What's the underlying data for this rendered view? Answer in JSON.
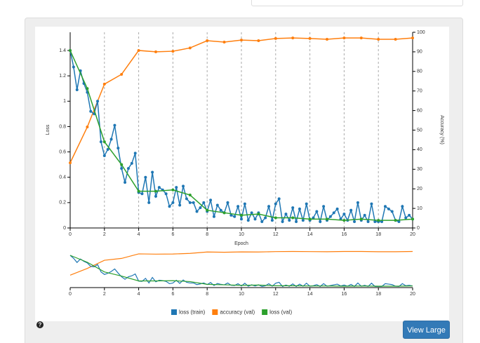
{
  "chart_data": {
    "type": "line",
    "x_label": "Epoch",
    "y_label": "Loss",
    "y2_label": "Accuracy (%)",
    "xlim": [
      0,
      20
    ],
    "xticks": [
      0,
      2,
      4,
      6,
      8,
      10,
      12,
      14,
      16,
      18,
      20
    ],
    "ylim": [
      0,
      1.4
    ],
    "yticks": [
      0,
      0.2,
      0.4,
      0.6,
      0.8,
      1,
      1.2,
      1.4
    ],
    "y2lim": [
      0,
      100
    ],
    "y2ticks": [
      0,
      10,
      20,
      30,
      40,
      50,
      60,
      70,
      80,
      90,
      100
    ],
    "grid": "x",
    "legend": "bottom",
    "series": [
      {
        "name": "loss (train)",
        "color": "#1f77b4",
        "x": [
          0,
          0.2,
          0.4,
          0.6,
          0.8,
          1,
          1.2,
          1.4,
          1.6,
          1.8,
          2,
          2.2,
          2.4,
          2.6,
          2.8,
          3,
          3.2,
          3.4,
          3.6,
          3.8,
          4,
          4.2,
          4.4,
          4.6,
          4.8,
          5,
          5.2,
          5.4,
          5.6,
          5.8,
          6,
          6.2,
          6.4,
          6.6,
          6.8,
          7,
          7.2,
          7.4,
          7.6,
          7.8,
          8,
          8.2,
          8.4,
          8.6,
          8.8,
          9,
          9.2,
          9.4,
          9.6,
          9.8,
          10,
          10.2,
          10.4,
          10.6,
          10.8,
          11,
          11.2,
          11.4,
          11.6,
          11.8,
          12,
          12.2,
          12.4,
          12.6,
          12.8,
          13,
          13.2,
          13.4,
          13.6,
          13.8,
          14,
          14.2,
          14.4,
          14.6,
          14.8,
          15,
          15.2,
          15.4,
          15.6,
          15.8,
          16,
          16.2,
          16.4,
          16.6,
          16.8,
          17,
          17.2,
          17.4,
          17.6,
          17.8,
          18,
          18.2,
          18.4,
          18.6,
          18.8,
          19,
          19.2,
          19.4,
          19.6,
          19.8,
          20
        ],
        "values": [
          1.4,
          1.27,
          1.09,
          1.24,
          1.14,
          1.07,
          0.92,
          0.9,
          1.0,
          0.68,
          0.57,
          0.62,
          0.7,
          0.81,
          0.63,
          0.47,
          0.36,
          0.47,
          0.51,
          0.59,
          0.28,
          0.27,
          0.4,
          0.2,
          0.44,
          0.25,
          0.32,
          0.3,
          0.27,
          0.17,
          0.2,
          0.32,
          0.18,
          0.33,
          0.23,
          0.2,
          0.2,
          0.13,
          0.16,
          0.2,
          0.13,
          0.22,
          0.09,
          0.18,
          0.14,
          0.12,
          0.2,
          0.1,
          0.09,
          0.17,
          0.07,
          0.19,
          0.06,
          0.12,
          0.07,
          0.12,
          0.05,
          0.08,
          0.17,
          0.06,
          0.19,
          0.23,
          0.05,
          0.11,
          0.06,
          0.16,
          0.05,
          0.15,
          0.06,
          0.19,
          0.06,
          0.08,
          0.13,
          0.05,
          0.17,
          0.06,
          0.09,
          0.12,
          0.15,
          0.07,
          0.11,
          0.06,
          0.14,
          0.05,
          0.2,
          0.06,
          0.1,
          0.05,
          0.19,
          0.05,
          0.05,
          0.05,
          0.17,
          0.15,
          0.13,
          0.06,
          0.05,
          0.17,
          0.08,
          0.1,
          0.07
        ]
      },
      {
        "name": "accuracy (val)",
        "color": "#ff7f0e",
        "axis": "y2",
        "x": [
          0,
          1,
          2,
          3,
          4,
          5,
          6,
          7,
          8,
          9,
          10,
          11,
          12,
          13,
          14,
          15,
          16,
          17,
          18,
          19,
          20
        ],
        "values": [
          33.3,
          51.6,
          73.5,
          78.5,
          90.7,
          90,
          90.3,
          92,
          95.7,
          95,
          96,
          95.7,
          96.8,
          97.1,
          96.8,
          96.4,
          97.1,
          97.1,
          96.4,
          96.4,
          97.1
        ]
      },
      {
        "name": "loss (val)",
        "color": "#2ca02c",
        "x": [
          0,
          1,
          2,
          3,
          4,
          5,
          6,
          7,
          8,
          9,
          10,
          11,
          12,
          13,
          14,
          15,
          16,
          17,
          18,
          19,
          20
        ],
        "values": [
          1.4,
          1.1,
          0.68,
          0.5,
          0.29,
          0.29,
          0.3,
          0.26,
          0.14,
          0.12,
          0.1,
          0.11,
          0.08,
          0.08,
          0.07,
          0.07,
          0.06,
          0.07,
          0.06,
          0.06,
          0.07
        ]
      }
    ]
  },
  "button": "View Large"
}
